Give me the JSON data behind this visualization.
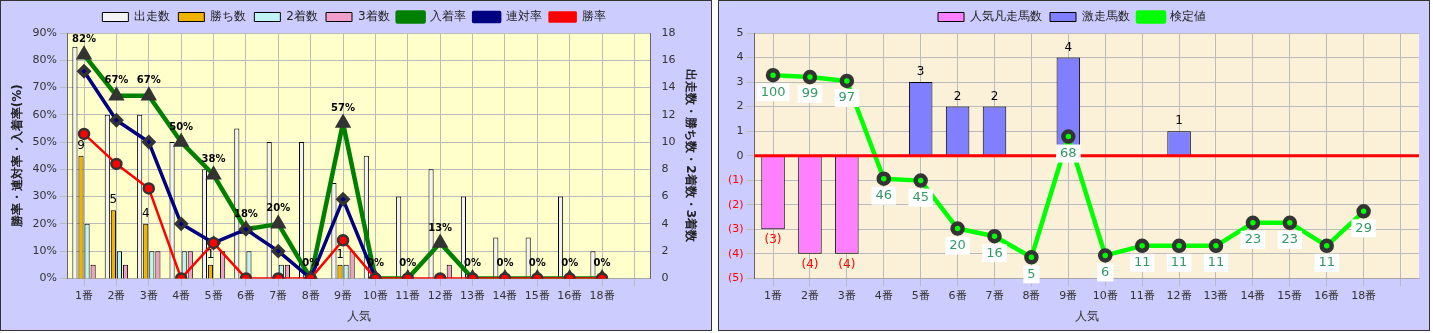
{
  "chart_data": [
    {
      "type": "bar",
      "xlabel": "人気",
      "ylabel": "勝率・連対率・入着率(%)",
      "y2label": "出走数・勝ち数・2着数・3着数",
      "categories": [
        "1番",
        "2番",
        "3番",
        "4番",
        "5番",
        "6番",
        "7番",
        "8番",
        "9番",
        "10番",
        "11番",
        "12番",
        "13番",
        "14番",
        "15番",
        "16番",
        "18番",
        null
      ],
      "series": [
        {
          "name": "出走数",
          "axis": "y2",
          "color": "#f4f4f4",
          "values": [
            17,
            12,
            12,
            10,
            8,
            11,
            10,
            10,
            7,
            9,
            6,
            8,
            6,
            3,
            3,
            6,
            2,
            null
          ]
        },
        {
          "name": "勝ち数",
          "axis": "y2",
          "color": "#f0b400",
          "values": [
            9,
            5,
            4,
            0,
            1,
            0,
            0,
            0,
            1,
            0,
            0,
            0,
            0,
            0,
            0,
            0,
            0,
            null
          ],
          "value_labels": [
            "9",
            "5",
            "4",
            null,
            "1",
            null,
            null,
            null,
            "1",
            null,
            null,
            null,
            null,
            null,
            null,
            null,
            null,
            null
          ]
        },
        {
          "name": "2着数",
          "axis": "y2",
          "color": "#c0f4f4",
          "values": [
            4,
            2,
            2,
            2,
            0,
            2,
            1,
            0,
            1,
            0,
            0,
            0,
            0,
            0,
            0,
            0,
            0,
            null
          ]
        },
        {
          "name": "3着数",
          "axis": "y2",
          "color": "#f0a0c8",
          "values": [
            1,
            1,
            2,
            2,
            2,
            0,
            1,
            0,
            2,
            0,
            0,
            1,
            0,
            0,
            0,
            0,
            0,
            null
          ]
        },
        {
          "name": "入着率",
          "type": "line",
          "marker": "triangle",
          "color": "#008000",
          "values": [
            82,
            67,
            67,
            50,
            38,
            18,
            20,
            0,
            57,
            0,
            0,
            13,
            0,
            0,
            0,
            0,
            0,
            null
          ],
          "value_labels": [
            "82%",
            "67%",
            "67%",
            "50%",
            "38%",
            "18%",
            "20%",
            "0%",
            "57%",
            "0%",
            "0%",
            "13%",
            "0%",
            "0%",
            "0%",
            "0%",
            "0%",
            null
          ]
        },
        {
          "name": "連対率",
          "type": "line",
          "marker": "diamond",
          "color": "#000080",
          "values": [
            76,
            58,
            50,
            20,
            13,
            18,
            10,
            0,
            29,
            0,
            null,
            null,
            null,
            null,
            null,
            null,
            null,
            null
          ]
        },
        {
          "name": "勝率",
          "type": "line",
          "marker": "circle",
          "color": "#ff0000",
          "values": [
            53,
            42,
            33,
            0,
            13,
            0,
            0,
            0,
            14,
            0,
            0,
            0,
            0,
            0,
            0,
            0,
            0,
            null
          ]
        }
      ],
      "ylim": [
        0,
        90
      ],
      "yticks": [
        {
          "value": 0,
          "label": "0%"
        },
        {
          "value": 10,
          "label": "10%"
        },
        {
          "value": 20,
          "label": "20%"
        },
        {
          "value": 30,
          "label": "30%"
        },
        {
          "value": 40,
          "label": "40%"
        },
        {
          "value": 50,
          "label": "50%"
        },
        {
          "value": 60,
          "label": "60%"
        },
        {
          "value": 70,
          "label": "70%"
        },
        {
          "value": 80,
          "label": "80%"
        },
        {
          "value": 90,
          "label": "90%"
        }
      ],
      "y2lim": [
        0,
        18
      ],
      "y2ticks": [
        0,
        2,
        4,
        6,
        8,
        10,
        12,
        14,
        16,
        18
      ],
      "grid": true,
      "legend": "top"
    },
    {
      "type": "bar",
      "xlabel": "人気",
      "categories": [
        "1番",
        "2番",
        "3番",
        "4番",
        "5番",
        "6番",
        "7番",
        "8番",
        "9番",
        "10番",
        "11番",
        "12番",
        "13番",
        "14番",
        "15番",
        "16番",
        "18番",
        null
      ],
      "series": [
        {
          "name": "人気凡走馬数",
          "color": "#ff80ff",
          "values": [
            -3,
            -4,
            -4,
            null,
            null,
            null,
            null,
            null,
            null,
            null,
            null,
            null,
            null,
            null,
            null,
            null,
            null,
            null
          ],
          "value_labels": [
            "(3)",
            "(4)",
            "(4)",
            null,
            null,
            null,
            null,
            null,
            null,
            null,
            null,
            null,
            null,
            null,
            null,
            null,
            null,
            null
          ]
        },
        {
          "name": "激走馬数",
          "color": "#8080ff",
          "values": [
            null,
            null,
            null,
            null,
            3,
            2,
            2,
            null,
            4,
            null,
            null,
            1,
            null,
            null,
            null,
            null,
            null,
            null
          ],
          "value_labels": [
            null,
            null,
            null,
            null,
            "3",
            "2",
            "2",
            null,
            "4",
            null,
            null,
            "1",
            null,
            null,
            null,
            null,
            null,
            null
          ]
        },
        {
          "name": "検定値",
          "type": "line",
          "axis": "y2",
          "marker": "circle",
          "color": "#00ff00",
          "values": [
            100,
            99,
            97,
            46,
            45,
            20,
            16,
            5,
            68,
            6,
            11,
            11,
            11,
            23,
            23,
            11,
            29,
            null
          ],
          "value_labels": [
            "100",
            "99",
            "97",
            "46",
            "45",
            "20",
            "16",
            "5",
            "68",
            "6",
            "11",
            "11",
            "11",
            "23",
            "23",
            "11",
            "29",
            null
          ]
        }
      ],
      "ylim": [
        -5,
        5
      ],
      "yticks": [
        {
          "value": -5,
          "label": "(5)"
        },
        {
          "value": -4,
          "label": "(4)"
        },
        {
          "value": -3,
          "label": "(3)"
        },
        {
          "value": -2,
          "label": "(2)"
        },
        {
          "value": -1,
          "label": "(1)"
        },
        0,
        1,
        2,
        3,
        4,
        5
      ],
      "y2lim": [
        -6,
        122
      ],
      "ref_lines": [
        {
          "axis": "y",
          "value": 0,
          "color": "#ff0000"
        }
      ],
      "grid": true,
      "legend": "top"
    }
  ]
}
